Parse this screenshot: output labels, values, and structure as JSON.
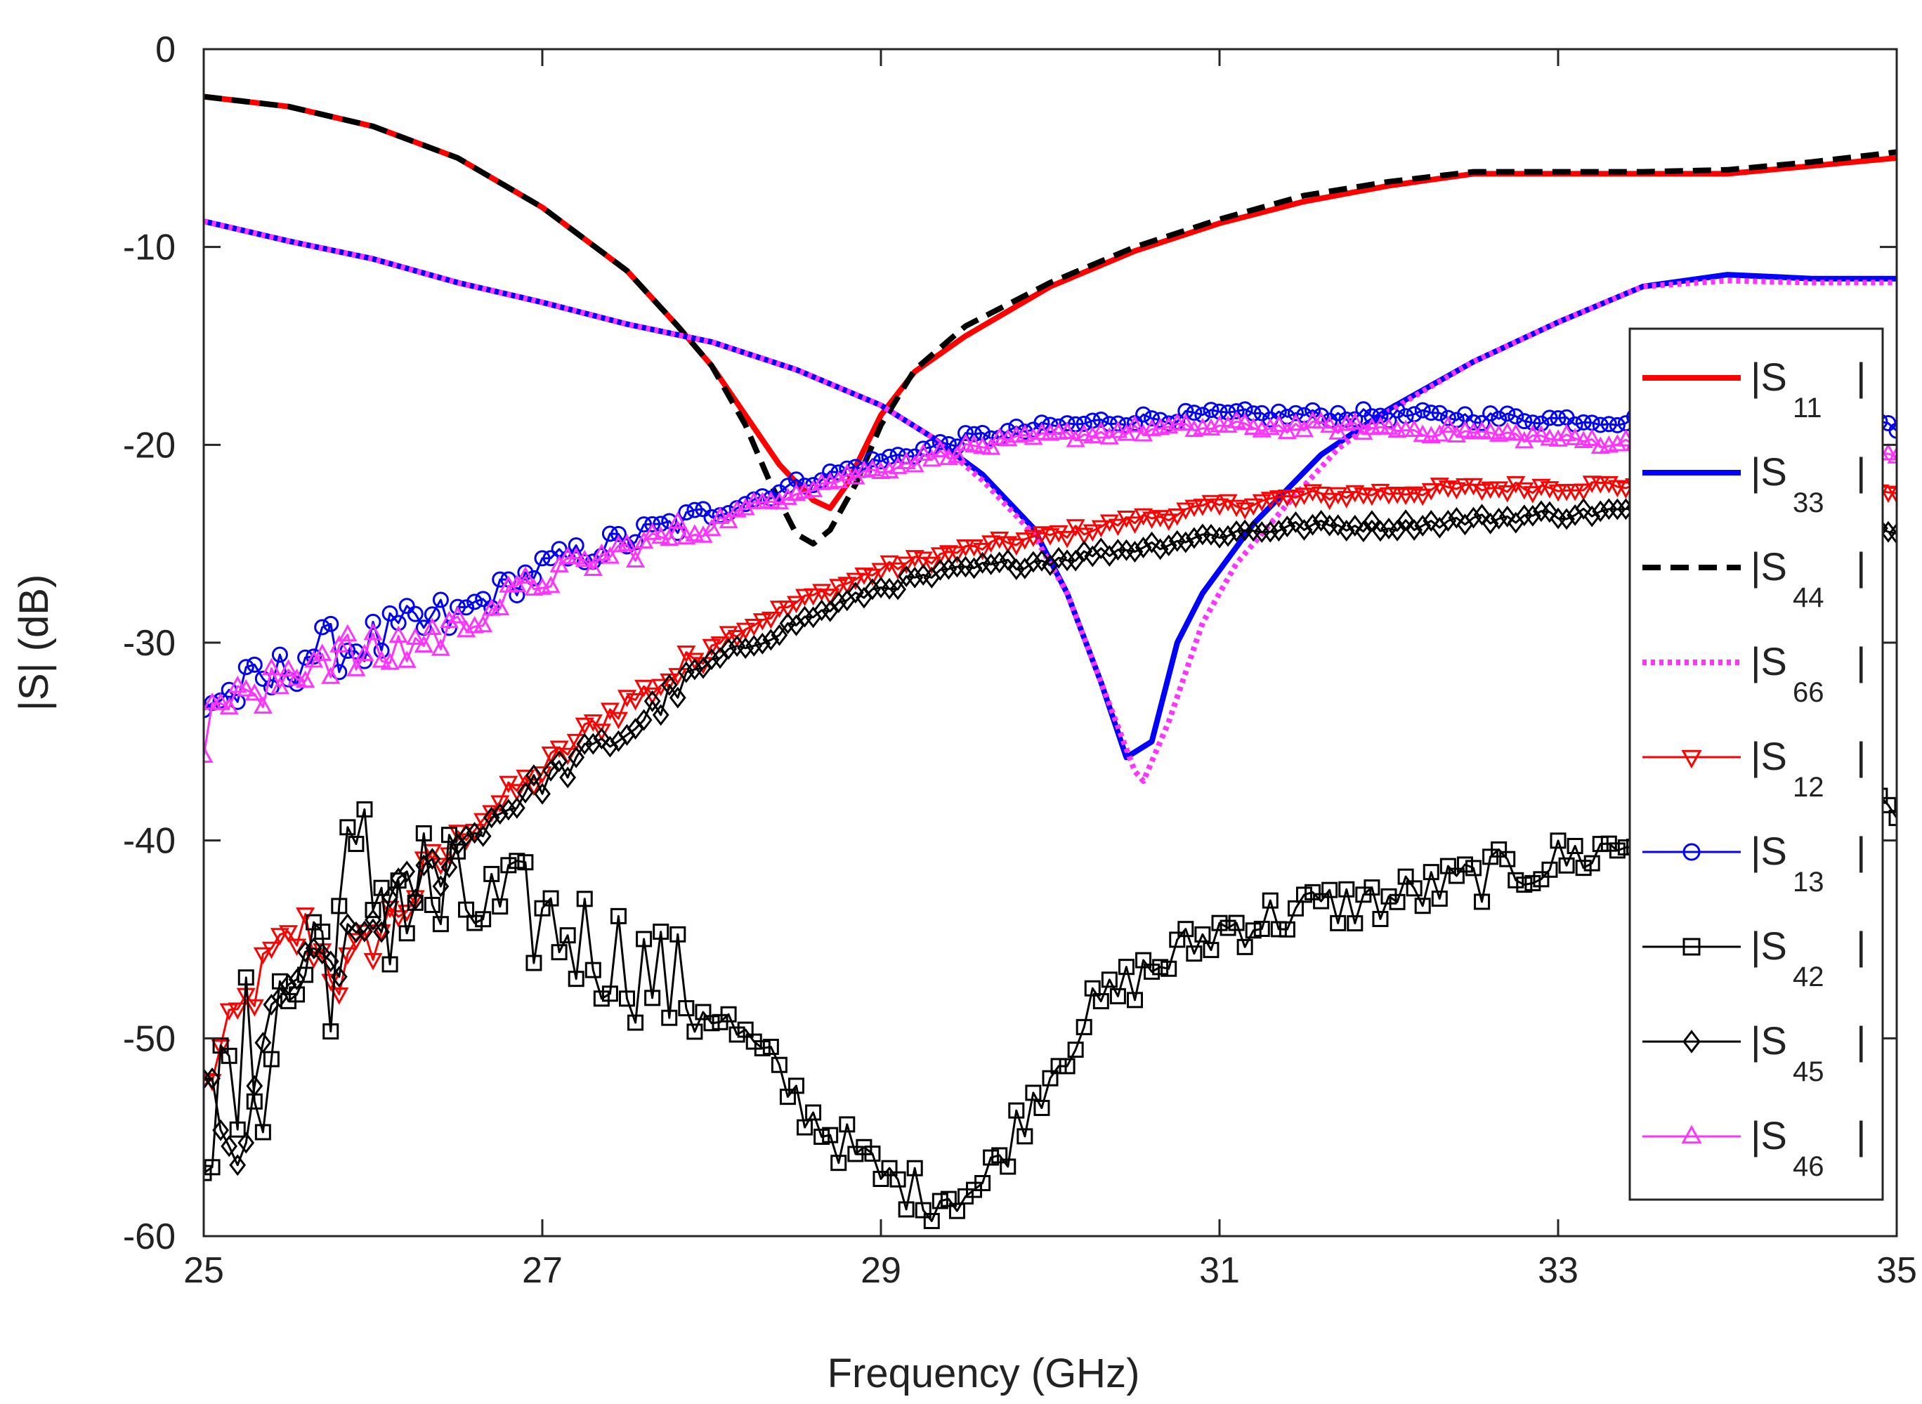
{
  "chart_data": {
    "type": "line",
    "title": "",
    "xlabel": "Frequency (GHz)",
    "ylabel": "|S| (dB)",
    "xlim": [
      25,
      35
    ],
    "ylim": [
      -60,
      0
    ],
    "x_ticks": [
      25,
      27,
      29,
      31,
      33,
      35
    ],
    "y_ticks": [
      0,
      -10,
      -20,
      -30,
      -40,
      -50,
      -60
    ],
    "x_tick_labels": [
      "25",
      "27",
      "29",
      "31",
      "33",
      "35"
    ],
    "y_tick_labels": [
      "0",
      "-10",
      "-20",
      "-30",
      "-40",
      "-50",
      "-60"
    ],
    "grid": false,
    "legend_position": "right",
    "series": [
      {
        "name": "S11",
        "label": "|S",
        "sub": "11",
        "close": "|",
        "color": "#ff0000",
        "style": "solid",
        "marker": "none",
        "width": "thick",
        "points": [
          [
            25,
            -2.4
          ],
          [
            25.5,
            -2.9
          ],
          [
            26,
            -3.9
          ],
          [
            26.5,
            -5.5
          ],
          [
            27,
            -8
          ],
          [
            27.5,
            -11.2
          ],
          [
            27.8,
            -14
          ],
          [
            28,
            -16
          ],
          [
            28.2,
            -18.5
          ],
          [
            28.4,
            -21
          ],
          [
            28.6,
            -22.8
          ],
          [
            28.7,
            -23.2
          ],
          [
            28.8,
            -22
          ],
          [
            29,
            -18.5
          ],
          [
            29.2,
            -16.3
          ],
          [
            29.5,
            -14.5
          ],
          [
            30,
            -12
          ],
          [
            30.5,
            -10.2
          ],
          [
            31,
            -8.8
          ],
          [
            31.5,
            -7.7
          ],
          [
            32,
            -6.9
          ],
          [
            32.5,
            -6.3
          ],
          [
            33,
            -6.3
          ],
          [
            33.5,
            -6.3
          ],
          [
            34,
            -6.3
          ],
          [
            34.5,
            -5.9
          ],
          [
            35,
            -5.5
          ]
        ]
      },
      {
        "name": "S33",
        "label": "|S",
        "sub": "33",
        "close": "|",
        "color": "#0000ff",
        "style": "solid",
        "marker": "none",
        "width": "thick",
        "points": [
          [
            25,
            -8.7
          ],
          [
            25.5,
            -9.7
          ],
          [
            26,
            -10.6
          ],
          [
            26.5,
            -11.8
          ],
          [
            27,
            -12.8
          ],
          [
            27.5,
            -13.9
          ],
          [
            28,
            -14.8
          ],
          [
            28.5,
            -16.2
          ],
          [
            29,
            -18
          ],
          [
            29.3,
            -19.6
          ],
          [
            29.6,
            -21.5
          ],
          [
            29.9,
            -24.2
          ],
          [
            30.1,
            -27.5
          ],
          [
            30.3,
            -32
          ],
          [
            30.45,
            -35.8
          ],
          [
            30.6,
            -35
          ],
          [
            30.75,
            -30
          ],
          [
            30.9,
            -27.5
          ],
          [
            31.2,
            -24
          ],
          [
            31.6,
            -20.5
          ],
          [
            32,
            -18.2
          ],
          [
            32.5,
            -15.8
          ],
          [
            33,
            -13.8
          ],
          [
            33.5,
            -12
          ],
          [
            34,
            -11.4
          ],
          [
            34.5,
            -11.6
          ],
          [
            35,
            -11.6
          ]
        ]
      },
      {
        "name": "S44",
        "label": "|S",
        "sub": "44",
        "close": "|",
        "color": "#000000",
        "style": "dashed",
        "marker": "none",
        "width": "thick",
        "points": [
          [
            25,
            -2.4
          ],
          [
            25.5,
            -2.9
          ],
          [
            26,
            -3.9
          ],
          [
            26.5,
            -5.5
          ],
          [
            27,
            -8
          ],
          [
            27.5,
            -11.2
          ],
          [
            27.8,
            -14
          ],
          [
            28,
            -16
          ],
          [
            28.2,
            -19
          ],
          [
            28.35,
            -22
          ],
          [
            28.5,
            -24.5
          ],
          [
            28.6,
            -25
          ],
          [
            28.7,
            -24.3
          ],
          [
            28.85,
            -22
          ],
          [
            29,
            -19
          ],
          [
            29.2,
            -16.2
          ],
          [
            29.5,
            -14
          ],
          [
            30,
            -11.8
          ],
          [
            30.5,
            -10
          ],
          [
            31,
            -8.6
          ],
          [
            31.5,
            -7.4
          ],
          [
            32,
            -6.7
          ],
          [
            32.5,
            -6.2
          ],
          [
            33,
            -6.2
          ],
          [
            33.5,
            -6.2
          ],
          [
            34,
            -6.1
          ],
          [
            34.5,
            -5.7
          ],
          [
            35,
            -5.2
          ]
        ]
      },
      {
        "name": "S66",
        "label": "|S",
        "sub": "66",
        "close": "|",
        "color": "#ff33ff",
        "style": "dotted",
        "marker": "none",
        "width": "thick",
        "points": [
          [
            25,
            -8.7
          ],
          [
            25.5,
            -9.7
          ],
          [
            26,
            -10.6
          ],
          [
            26.5,
            -11.8
          ],
          [
            27,
            -12.8
          ],
          [
            27.5,
            -13.9
          ],
          [
            28,
            -14.8
          ],
          [
            28.5,
            -16.2
          ],
          [
            29,
            -18
          ],
          [
            29.3,
            -19.6
          ],
          [
            29.6,
            -21.8
          ],
          [
            29.9,
            -24.5
          ],
          [
            30.1,
            -27.5
          ],
          [
            30.3,
            -32
          ],
          [
            30.5,
            -36.5
          ],
          [
            30.55,
            -37
          ],
          [
            30.7,
            -34
          ],
          [
            30.9,
            -29
          ],
          [
            31.1,
            -26
          ],
          [
            31.4,
            -23
          ],
          [
            31.7,
            -20.2
          ],
          [
            32,
            -18.3
          ],
          [
            32.5,
            -15.8
          ],
          [
            33,
            -13.8
          ],
          [
            33.5,
            -12
          ],
          [
            34,
            -11.7
          ],
          [
            34.5,
            -11.8
          ],
          [
            35,
            -11.8
          ]
        ]
      },
      {
        "name": "S12",
        "label": "|S",
        "sub": "12",
        "close": "|",
        "color": "#ff0000",
        "style": "solid",
        "marker": "triangle-down",
        "width": "thin",
        "noisy": true,
        "points": [
          [
            25,
            -52.5
          ],
          [
            25.2,
            -49
          ],
          [
            25.4,
            -46
          ],
          [
            25.6,
            -44.5
          ],
          [
            25.8,
            -47
          ],
          [
            26,
            -45
          ],
          [
            26.3,
            -42
          ],
          [
            26.6,
            -39
          ],
          [
            27,
            -36.5
          ],
          [
            27.4,
            -33.5
          ],
          [
            27.8,
            -31.5
          ],
          [
            28,
            -30
          ],
          [
            28.5,
            -28
          ],
          [
            29,
            -26.3
          ],
          [
            29.5,
            -25.3
          ],
          [
            30,
            -24.6
          ],
          [
            30.5,
            -23.8
          ],
          [
            31,
            -23.1
          ],
          [
            31.5,
            -22.6
          ],
          [
            32,
            -22.4
          ],
          [
            32.5,
            -22.2
          ],
          [
            33,
            -22.1
          ],
          [
            33.5,
            -22
          ],
          [
            34,
            -22
          ],
          [
            34.5,
            -22.3
          ],
          [
            35,
            -22.5
          ]
        ]
      },
      {
        "name": "S13",
        "label": "|S",
        "sub": "13",
        "close": "|",
        "color": "#0000ff",
        "style": "solid",
        "marker": "circle",
        "width": "thin",
        "noisy": true,
        "points": [
          [
            25,
            -33
          ],
          [
            25.2,
            -32.5
          ],
          [
            25.4,
            -32
          ],
          [
            25.6,
            -30.5
          ],
          [
            26,
            -30
          ],
          [
            26.5,
            -28.6
          ],
          [
            27,
            -26.2
          ],
          [
            27.5,
            -24.8
          ],
          [
            28,
            -23.5
          ],
          [
            28.5,
            -22
          ],
          [
            29,
            -20.8
          ],
          [
            29.5,
            -19.7
          ],
          [
            30,
            -19.1
          ],
          [
            30.5,
            -18.7
          ],
          [
            31,
            -18.5
          ],
          [
            31.5,
            -18.5
          ],
          [
            32,
            -18.5
          ],
          [
            32.5,
            -18.6
          ],
          [
            33,
            -18.7
          ],
          [
            33.5,
            -18.8
          ],
          [
            34,
            -18.9
          ],
          [
            34.5,
            -19
          ],
          [
            35,
            -19.1
          ]
        ]
      },
      {
        "name": "S42",
        "label": "|S",
        "sub": "42",
        "close": "|",
        "color": "#000000",
        "style": "solid",
        "marker": "square",
        "width": "thin",
        "noisy": true,
        "noise_amp": 5,
        "points": [
          [
            25,
            -52
          ],
          [
            25.1,
            -55
          ],
          [
            25.3,
            -51
          ],
          [
            25.5,
            -48
          ],
          [
            25.7,
            -45
          ],
          [
            26,
            -42
          ],
          [
            26.3,
            -43
          ],
          [
            26.6,
            -43.5
          ],
          [
            27,
            -44
          ],
          [
            27.5,
            -46
          ],
          [
            28,
            -48.5
          ],
          [
            28.3,
            -51
          ],
          [
            28.6,
            -54
          ],
          [
            29,
            -57
          ],
          [
            29.3,
            -58
          ],
          [
            29.6,
            -57.5
          ],
          [
            29.9,
            -53
          ],
          [
            30.2,
            -49
          ],
          [
            30.5,
            -47
          ],
          [
            31,
            -44.5
          ],
          [
            31.5,
            -43.5
          ],
          [
            32,
            -43
          ],
          [
            32.5,
            -42
          ],
          [
            33,
            -41
          ],
          [
            33.5,
            -40
          ],
          [
            34,
            -39.5
          ],
          [
            34.5,
            -39.5
          ],
          [
            35,
            -38.5
          ]
        ]
      },
      {
        "name": "S45",
        "label": "|S",
        "sub": "45",
        "close": "|",
        "color": "#000000",
        "style": "solid",
        "marker": "diamond",
        "width": "thin",
        "noisy": true,
        "points": [
          [
            25,
            -51.5
          ],
          [
            25.1,
            -55
          ],
          [
            25.2,
            -57
          ],
          [
            25.3,
            -52
          ],
          [
            25.5,
            -47
          ],
          [
            25.8,
            -46
          ],
          [
            26,
            -44
          ],
          [
            26.3,
            -42
          ],
          [
            26.6,
            -39.5
          ],
          [
            27,
            -37
          ],
          [
            27.5,
            -34.5
          ],
          [
            28,
            -31
          ],
          [
            28.5,
            -29
          ],
          [
            29,
            -27.2
          ],
          [
            29.5,
            -26.3
          ],
          [
            30,
            -25.8
          ],
          [
            30.5,
            -25.2
          ],
          [
            31,
            -24.5
          ],
          [
            31.5,
            -24.1
          ],
          [
            32,
            -24.1
          ],
          [
            32.5,
            -23.8
          ],
          [
            33,
            -23.5
          ],
          [
            33.5,
            -23.3
          ],
          [
            34,
            -23.3
          ],
          [
            34.5,
            -23.6
          ],
          [
            35,
            -24.2
          ]
        ]
      },
      {
        "name": "S46",
        "label": "|S",
        "sub": "46",
        "close": "|",
        "color": "#ff33ff",
        "style": "solid",
        "marker": "triangle-up",
        "width": "thin",
        "noisy": true,
        "points": [
          [
            25,
            -35.2
          ],
          [
            25.1,
            -33
          ],
          [
            25.2,
            -32
          ],
          [
            25.3,
            -33.5
          ],
          [
            25.5,
            -31.5
          ],
          [
            25.7,
            -30.5
          ],
          [
            26,
            -30.8
          ],
          [
            26.5,
            -29.2
          ],
          [
            27,
            -26.8
          ],
          [
            27.5,
            -25.3
          ],
          [
            28,
            -24
          ],
          [
            28.5,
            -22.3
          ],
          [
            29,
            -21.2
          ],
          [
            29.5,
            -20.2
          ],
          [
            30,
            -19.6
          ],
          [
            30.5,
            -19.3
          ],
          [
            31,
            -19.1
          ],
          [
            31.5,
            -19.1
          ],
          [
            32,
            -19.2
          ],
          [
            32.5,
            -19.4
          ],
          [
            33,
            -19.7
          ],
          [
            33.5,
            -20
          ],
          [
            34,
            -20.2
          ],
          [
            34.5,
            -20.4
          ],
          [
            35,
            -20.5
          ]
        ]
      }
    ]
  }
}
